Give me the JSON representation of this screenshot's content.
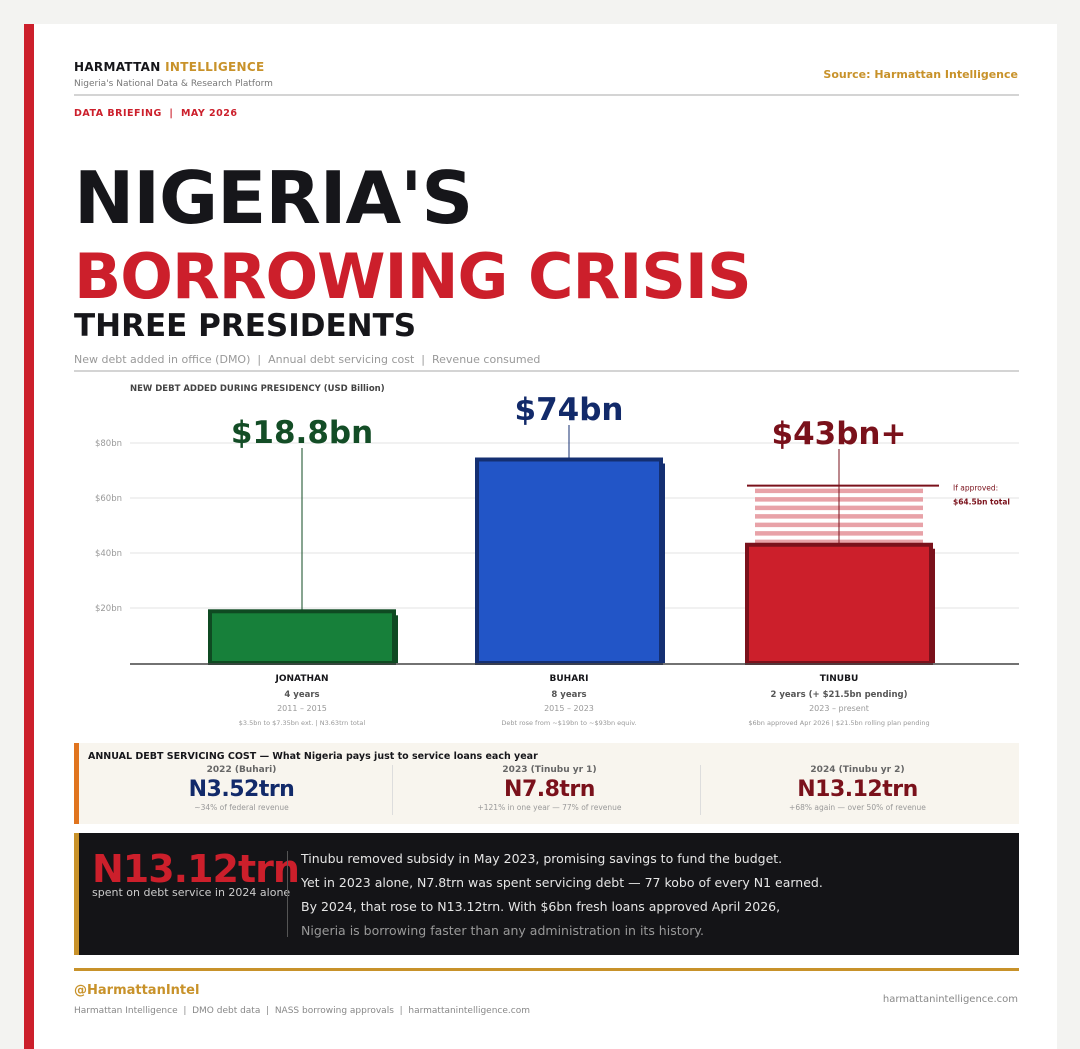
{
  "header": {
    "brand_main": "HARMATTAN",
    "brand_accent": "INTELLIGENCE",
    "tagline": "Nigeria's National Data & Research Platform",
    "source": "Source: Harmattan Intelligence",
    "briefing": "DATA BRIEFING  |  MAY 2026"
  },
  "title": {
    "line1": "NIGERIA'S",
    "line2": "BORROWING CRISIS",
    "line3": "THREE PRESIDENTS",
    "subtitle": "New debt added in office (DMO)  |  Annual debt servicing cost  |  Revenue consumed"
  },
  "chart_data": {
    "type": "bar",
    "title": "NEW DEBT ADDED DURING PRESIDENCY (USD Billion)",
    "ylim": [
      0,
      80
    ],
    "yticks": [
      20,
      40,
      60,
      80
    ],
    "ytick_labels": [
      "$20bn",
      "$40bn",
      "$60bn",
      "$80bn"
    ],
    "grid": true,
    "bars": [
      {
        "category": "JONATHAN",
        "value": 18.8,
        "value_label": "$18.8bn",
        "color": "#17803a",
        "edge": "#0f4a22",
        "label_color": "#134d26",
        "tenure": "4 years",
        "years": "2011 – 2015",
        "note": "$3.5bn to $7.35bn ext. | N3.63trn total"
      },
      {
        "category": "BUHARI",
        "value": 74,
        "value_label": "$74bn",
        "color": "#2255c7",
        "edge": "#142f72",
        "label_color": "#122a6a",
        "tenure": "8 years",
        "years": "2015 – 2023",
        "note": "Debt rose from ~$19bn to ~$93bn equiv."
      },
      {
        "category": "TINUBU",
        "value": 43,
        "value_label": "$43bn+",
        "color": "#cc1f2b",
        "edge": "#7a111b",
        "label_color": "#7a111b",
        "tenure": "2 years (+ $21.5bn pending)",
        "years": "2023 – present",
        "note": "$6bn approved Apr 2026 | $21.5bn rolling plan pending",
        "pending_value": 21.5,
        "pending_total": 64.5,
        "pending_label_1": "If approved:",
        "pending_label_2": "$64.5bn total",
        "pending_color": "#e8a2a8"
      }
    ]
  },
  "servicing": {
    "title": "ANNUAL DEBT SERVICING COST  —  What Nigeria pays just to service loans each year",
    "items": [
      {
        "year": "2022 (Buhari)",
        "value": "N3.52trn",
        "note": "~34% of federal revenue",
        "color": "#122a6a"
      },
      {
        "year": "2023 (Tinubu yr 1)",
        "value": "N7.8trn",
        "note": "+121% in one year — 77% of revenue",
        "color": "#7a111b"
      },
      {
        "year": "2024 (Tinubu yr 2)",
        "value": "N13.12trn",
        "note": "+68% again — over 50% of revenue",
        "color": "#7a111b"
      }
    ]
  },
  "callout": {
    "big": "N13.12trn",
    "big_sub": "spent on debt service in 2024 alone",
    "lines": [
      "Tinubu removed subsidy in May 2023, promising savings to fund the budget.",
      "Yet in 2023 alone, N7.8trn was spent servicing debt — 77 kobo of every N1 earned.",
      "By 2024, that rose to N13.12trn. With $6bn fresh loans approved April 2026,",
      "Nigeria is borrowing faster than any administration in its history."
    ]
  },
  "footer": {
    "handle": "@HarmattanIntel",
    "sources": "Harmattan Intelligence  |  DMO debt data  |  NASS borrowing approvals  |  harmattanintelligence.com",
    "site": "harmattanintelligence.com"
  }
}
